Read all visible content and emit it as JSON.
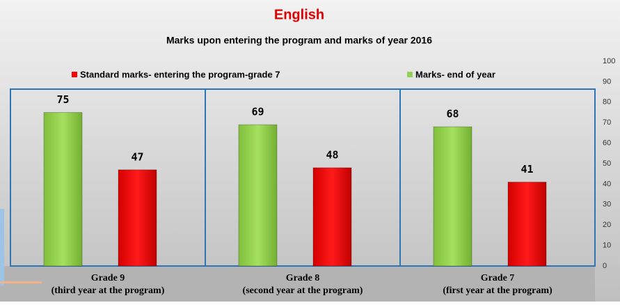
{
  "chart_data": {
    "type": "bar",
    "title": "English",
    "subtitle": "Marks upon entering the program and marks of year 2016",
    "categories": [
      "Grade 9",
      "Grade 8",
      "Grade 7"
    ],
    "category_notes": [
      "(third year at the program)",
      "(second year at the program)",
      "(first year at the program)"
    ],
    "series": [
      {
        "name": "Standard marks- entering the program-grade 7",
        "color": "#ff0000",
        "values": [
          47,
          48,
          41
        ]
      },
      {
        "name": "Marks- end of year",
        "color": "#92d050",
        "values": [
          75,
          69,
          68
        ]
      }
    ],
    "ylim": [
      0,
      100
    ],
    "yticks": [
      0,
      10,
      20,
      30,
      40,
      50,
      60,
      70,
      80,
      90,
      100
    ],
    "grid": false,
    "legend": "top"
  }
}
